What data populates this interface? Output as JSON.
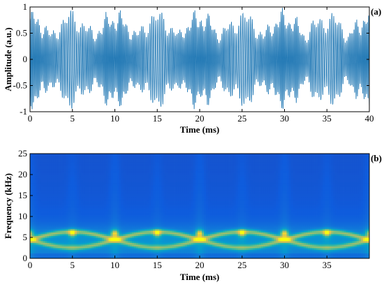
{
  "chart_data": [
    {
      "type": "line",
      "panel_label": "(a)",
      "xlabel": "Time (ms)",
      "ylabel": "Amplitude (a.u.)",
      "xlim": [
        0,
        40
      ],
      "ylim": [
        -1,
        1
      ],
      "x_ticks": [
        "0",
        "5",
        "10",
        "15",
        "20",
        "25",
        "30",
        "35",
        "40"
      ],
      "y_ticks": [
        "-1",
        "-0.5",
        "0",
        "0.5",
        "1"
      ],
      "series_color": "#1f77b4",
      "signal": {
        "description_of_shape": "chirp-like bursts repeating every 10 ms, amplitude nearly fills -1 to 1",
        "period_ms": 10,
        "carrier_min_khz": 4,
        "carrier_max_khz": 6.5,
        "envelope_peak": 1.0
      }
    },
    {
      "type": "heatmap",
      "panel_label": "(b)",
      "xlabel": "Time (ms)",
      "ylabel": "Frequency (kHz)",
      "xlim": [
        0,
        40
      ],
      "ylim": [
        0,
        25
      ],
      "x_ticks": [
        "0",
        "5",
        "10",
        "15",
        "20",
        "25",
        "30",
        "35"
      ],
      "y_ticks": [
        "0",
        "5",
        "10",
        "15",
        "20",
        "25"
      ],
      "colormap": "parula",
      "features": {
        "arc_period_ms": 10,
        "arc_center_khz": 4.5,
        "arc_half_height_khz": 2.0,
        "hotspot_khz": 6,
        "hotspot_times_ms": [
          0,
          5,
          10,
          15,
          20,
          25,
          30,
          35,
          40
        ],
        "bright_hotspot_times_ms": [
          10,
          20,
          30
        ]
      }
    }
  ]
}
